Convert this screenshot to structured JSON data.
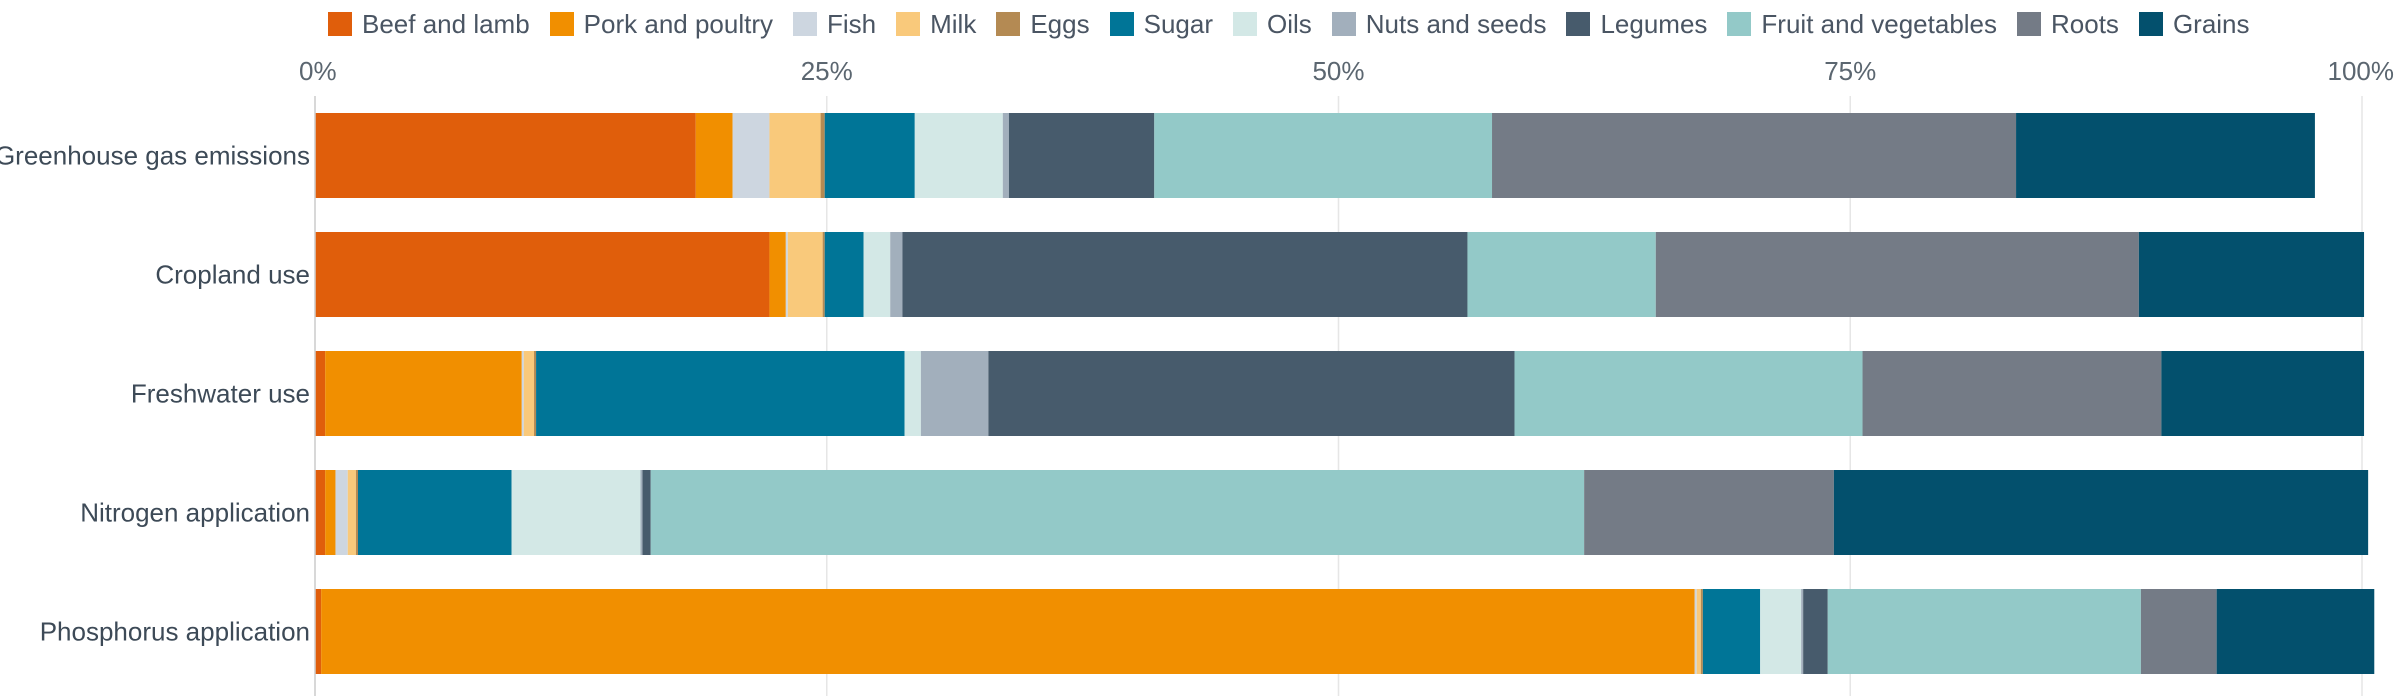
{
  "chart_data": {
    "type": "bar",
    "orientation": "horizontal",
    "stacked": true,
    "title": "",
    "xlabel": "",
    "ylabel": "",
    "xlim": [
      0,
      100
    ],
    "x_tick_values": [
      0,
      25,
      50,
      75,
      100
    ],
    "x_tick_labels": [
      "0%",
      "25%",
      "50%",
      "75%",
      "100%"
    ],
    "x_axis_position": "top",
    "grid": true,
    "legend_position": "top",
    "categories": [
      "Greenhouse gas emissions",
      "Cropland use",
      "Freshwater use",
      "Nitrogen application",
      "Phosphorus application"
    ],
    "series": [
      {
        "name": "Beef and lamb",
        "color": "#e05e0b",
        "values": [
          18.6,
          22.2,
          0.5,
          0.5,
          0.3
        ]
      },
      {
        "name": "Pork and poultry",
        "color": "#f18f00",
        "values": [
          1.8,
          0.8,
          9.6,
          0.5,
          67.1
        ]
      },
      {
        "name": "Fish",
        "color": "#cdd6e0",
        "values": [
          1.8,
          0.1,
          0.1,
          0.6,
          0.1
        ]
      },
      {
        "name": "Milk",
        "color": "#f9c97b",
        "values": [
          2.5,
          1.7,
          0.5,
          0.4,
          0.2
        ]
      },
      {
        "name": "Eggs",
        "color": "#b48a53",
        "values": [
          0.2,
          0.1,
          0.1,
          0.1,
          0.1
        ]
      },
      {
        "name": "Sugar",
        "color": "#007597",
        "values": [
          4.4,
          1.9,
          18.0,
          7.5,
          2.8
        ]
      },
      {
        "name": "Oils",
        "color": "#d3e8e6",
        "values": [
          4.3,
          1.3,
          0.8,
          6.3,
          2.0
        ]
      },
      {
        "name": "Nuts and seeds",
        "color": "#a2afbc",
        "values": [
          0.3,
          0.6,
          3.3,
          0.1,
          0.1
        ]
      },
      {
        "name": "Legumes",
        "color": "#475b6c",
        "values": [
          7.1,
          27.6,
          25.7,
          0.4,
          1.2
        ]
      },
      {
        "name": "Fruit and vegetables",
        "color": "#93c9c8",
        "values": [
          16.5,
          9.2,
          17.0,
          45.6,
          15.3
        ]
      },
      {
        "name": "Roots",
        "color": "#747b86",
        "values": [
          25.6,
          23.6,
          14.6,
          12.2,
          3.7
        ]
      },
      {
        "name": "Grains",
        "color": "#03506d",
        "values": [
          14.6,
          11.0,
          9.9,
          26.1,
          7.7
        ]
      }
    ]
  }
}
